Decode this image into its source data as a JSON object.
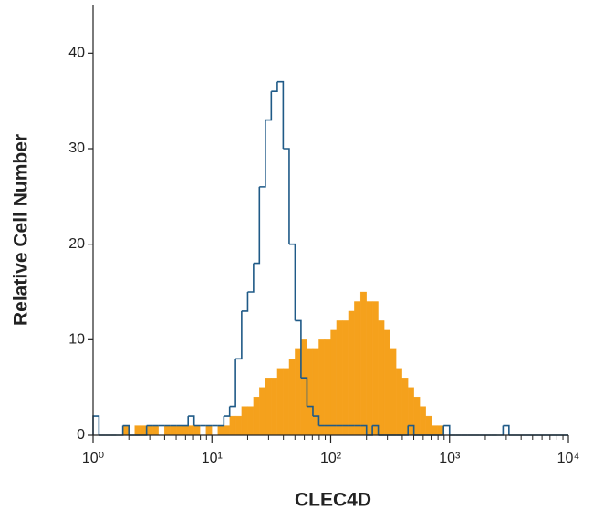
{
  "chart_data": {
    "type": "histogram",
    "xlabel": "CLEC4D",
    "ylabel": "Relative Cell Number",
    "xscale": "log",
    "xlim": [
      1,
      10000
    ],
    "xticks": [
      {
        "value": 1,
        "label": "10⁰"
      },
      {
        "value": 10,
        "label": "10¹"
      },
      {
        "value": 100,
        "label": "10²"
      },
      {
        "value": 1000,
        "label": "10³"
      },
      {
        "value": 10000,
        "label": "10⁴"
      }
    ],
    "xminor_ticks": [
      2,
      3,
      4,
      5,
      6,
      7,
      8,
      9,
      20,
      30,
      40,
      50,
      60,
      70,
      80,
      90,
      200,
      300,
      400,
      500,
      600,
      700,
      800,
      900,
      2000,
      3000,
      4000,
      5000,
      6000,
      7000,
      8000,
      9000
    ],
    "ylim": [
      0,
      45
    ],
    "yticks": [
      0,
      10,
      20,
      30,
      40
    ],
    "bins": [
      1,
      1.12,
      1.26,
      1.41,
      1.58,
      1.78,
      2,
      2.24,
      2.51,
      2.82,
      3.16,
      3.55,
      3.98,
      4.47,
      5.01,
      5.62,
      6.31,
      7.08,
      7.94,
      8.91,
      10,
      11.2,
      12.6,
      14.1,
      15.8,
      17.8,
      20,
      22.4,
      25.1,
      28.2,
      31.6,
      35.5,
      39.8,
      44.7,
      50.1,
      56.2,
      63.1,
      70.8,
      79.4,
      89.1,
      100,
      112,
      126,
      141,
      158,
      178,
      200,
      224,
      251,
      282,
      316,
      355,
      398,
      447,
      501,
      562,
      631,
      708,
      794,
      891,
      1000,
      1120,
      1260,
      1410,
      1580,
      1780,
      2000,
      2240,
      2510,
      2820,
      3160,
      3550,
      3980,
      4470,
      5010,
      5620,
      6310,
      7080,
      7940,
      8910,
      10000
    ],
    "series": [
      {
        "color": "#f5a11c",
        "fill": true,
        "values": [
          0,
          0,
          0,
          0,
          0,
          1,
          0,
          1,
          1,
          1,
          1,
          0,
          1,
          1,
          1,
          1,
          1,
          1,
          0,
          1,
          0,
          1,
          1,
          2,
          2,
          3,
          3,
          4,
          5,
          6,
          6,
          7,
          7,
          8,
          9,
          10,
          9,
          9,
          10,
          10,
          11,
          12,
          12,
          13,
          14,
          15,
          14,
          14,
          12,
          11,
          9,
          7,
          6,
          5,
          4,
          3,
          2,
          1,
          1,
          0,
          0,
          0,
          0,
          0,
          0,
          0,
          0,
          0,
          0,
          0,
          0,
          0,
          0,
          0,
          0,
          0,
          0,
          0,
          0,
          0
        ]
      },
      {
        "color": "#1f5a87",
        "fill": false,
        "values": [
          2,
          0,
          0,
          0,
          0,
          1,
          0,
          0,
          0,
          1,
          1,
          1,
          1,
          1,
          1,
          1,
          2,
          1,
          1,
          1,
          1,
          1,
          2,
          3,
          8,
          13,
          15,
          18,
          26,
          33,
          36,
          37,
          30,
          20,
          12,
          6,
          3,
          2,
          1,
          1,
          1,
          1,
          1,
          1,
          1,
          1,
          0,
          1,
          0,
          0,
          0,
          0,
          0,
          1,
          0,
          0,
          0,
          0,
          0,
          1,
          0,
          0,
          0,
          0,
          0,
          0,
          0,
          0,
          0,
          1,
          0,
          0,
          0,
          0,
          0,
          0,
          0,
          0,
          0,
          0
        ]
      }
    ]
  }
}
